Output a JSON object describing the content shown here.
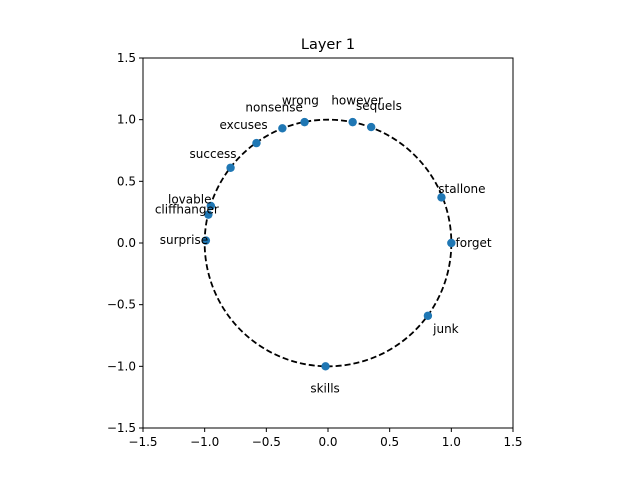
{
  "chart_data": {
    "type": "scatter",
    "title": "Layer 1",
    "xlim": [
      -1.5,
      1.5
    ],
    "ylim": [
      -1.5,
      1.5
    ],
    "x_ticks": [
      "−1.5",
      "−1.0",
      "−0.5",
      "0.0",
      "0.5",
      "1.0",
      "1.5"
    ],
    "y_ticks": [
      "−1.5",
      "−1.0",
      "−0.5",
      "0.0",
      "0.5",
      "1.0",
      "1.5"
    ],
    "grid": false,
    "marker_color": "#1f77b4",
    "circle": {
      "radius": 1.0,
      "style": "dashed",
      "color": "#000000"
    },
    "points": [
      {
        "label": "forget",
        "x": 1.0,
        "y": 0.0
      },
      {
        "label": "stallone",
        "x": 0.92,
        "y": 0.37
      },
      {
        "label": "sequels",
        "x": 0.35,
        "y": 0.94
      },
      {
        "label": "however",
        "x": 0.2,
        "y": 0.98
      },
      {
        "label": "wrong",
        "x": -0.19,
        "y": 0.98
      },
      {
        "label": "nonsense",
        "x": -0.37,
        "y": 0.93
      },
      {
        "label": "excuses",
        "x": -0.58,
        "y": 0.81
      },
      {
        "label": "success",
        "x": -0.79,
        "y": 0.61
      },
      {
        "label": "lovable",
        "x": -0.95,
        "y": 0.3
      },
      {
        "label": "cliffhanger",
        "x": -0.97,
        "y": 0.23
      },
      {
        "label": "surprise",
        "x": -0.99,
        "y": 0.02
      },
      {
        "label": "skills",
        "x": -0.02,
        "y": -1.0
      },
      {
        "label": "junk",
        "x": 0.81,
        "y": -0.59
      }
    ]
  }
}
